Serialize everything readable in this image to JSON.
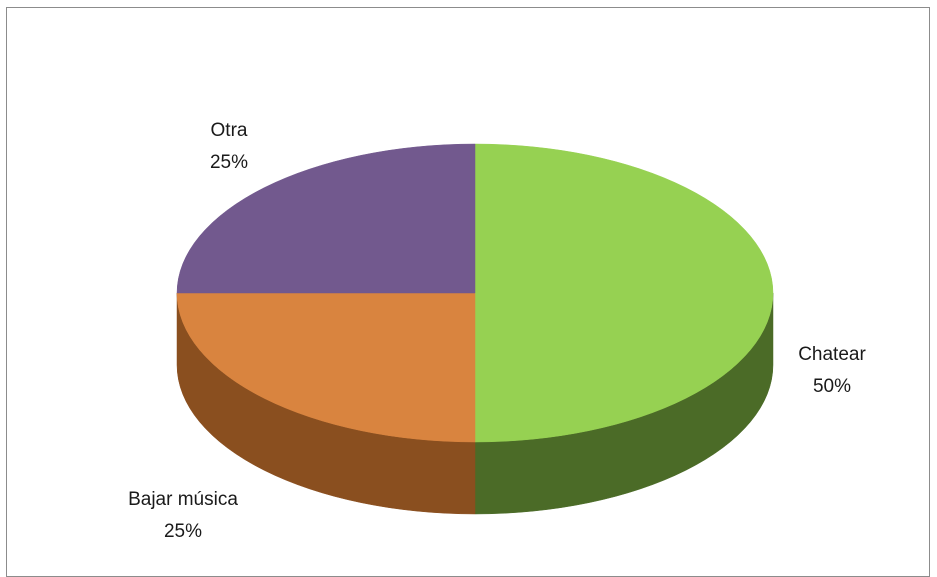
{
  "chart_data": {
    "type": "pie",
    "title": "",
    "categories": [
      "Chatear",
      "Otra",
      "Bajar música"
    ],
    "values": [
      50,
      25,
      25
    ],
    "data_labels": [
      "50%",
      "25%",
      "25%"
    ],
    "colors": {
      "Chatear": {
        "top": "#96d152",
        "side": "#4b6b27"
      },
      "Otra": {
        "top": "#d9843f",
        "side": "#8a4f1f"
      },
      "Bajar música": {
        "top": "#72598e",
        "side": "#3a2c4a"
      }
    },
    "legend": "none",
    "style": "3d"
  }
}
